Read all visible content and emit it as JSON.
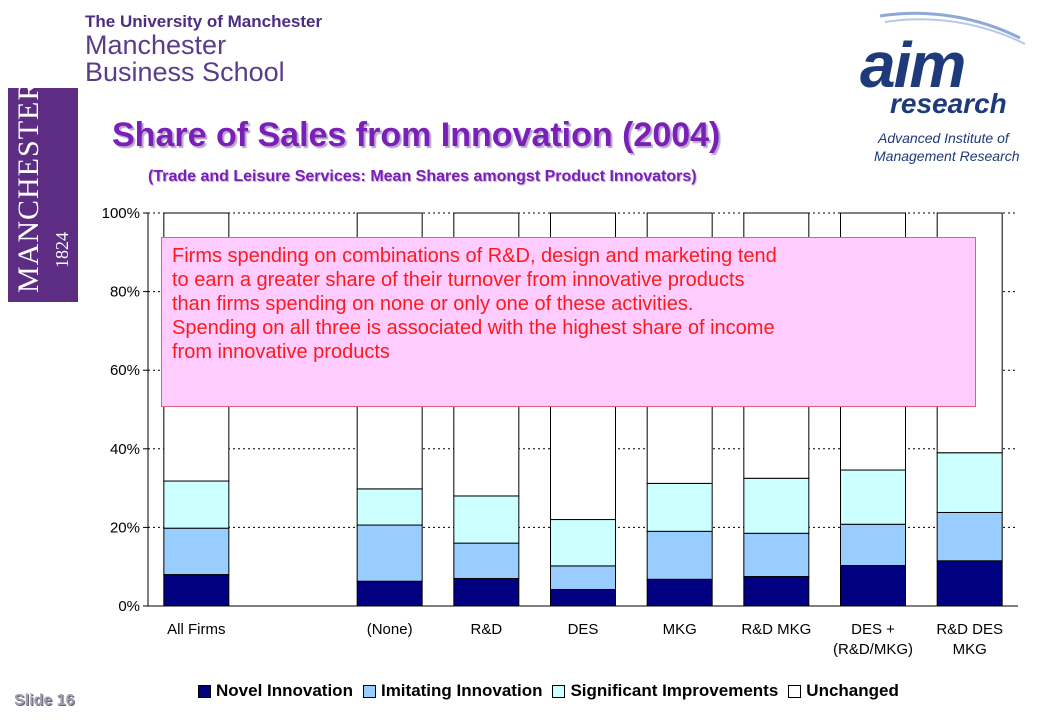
{
  "header": {
    "university": "The University of Manchester",
    "school_line1": "Manchester",
    "school_line2": "Business School"
  },
  "badge": {
    "name": "MANCHESTER",
    "year": "1824"
  },
  "aim_logo": {
    "mark": "aim",
    "research": "research",
    "line1": "Advanced Institute of",
    "line2": "Management Research"
  },
  "slide": {
    "number_label": "Slide 16"
  },
  "callout": {
    "lines": [
      "Firms spending on combinations of R&D, design and marketing tend",
      "to earn a greater share of their turnover from innovative products",
      "than firms spending on none or only one of these activities.",
      "Spending on all three is associated with the highest share of income",
      "from innovative products"
    ]
  },
  "chart_data": {
    "type": "bar",
    "stacked": true,
    "title": "Share of Sales from Innovation (2004)",
    "subtitle": "(Trade and Leisure Services: Mean Shares amongst Product Innovators)",
    "categories": [
      "All Firms",
      "",
      "(None)",
      "R&D",
      "DES",
      "MKG",
      "R&D MKG",
      "DES + (R&D/MKG)",
      "R&D DES MKG"
    ],
    "category_lines": [
      [
        "All Firms"
      ],
      [
        ""
      ],
      [
        "(None)"
      ],
      [
        "R&D"
      ],
      [
        "DES"
      ],
      [
        "MKG"
      ],
      [
        "R&D MKG"
      ],
      [
        "DES +",
        "(R&D/MKG)"
      ],
      [
        "R&D DES",
        "MKG"
      ]
    ],
    "series": [
      {
        "name": "Novel Innovation",
        "color": "#000080",
        "values": [
          8,
          0,
          6.3,
          7,
          4.2,
          6.8,
          7.5,
          10.3,
          11.5
        ]
      },
      {
        "name": "Imitating Innovation",
        "color": "#99ccff",
        "values": [
          11.8,
          0,
          14.3,
          9,
          6,
          12.2,
          11,
          10.5,
          12.3
        ]
      },
      {
        "name": "Significant Improvements",
        "color": "#ccffff",
        "values": [
          12,
          0,
          9.2,
          12,
          11.8,
          12.2,
          14,
          13.8,
          15.2
        ]
      },
      {
        "name": "Unchanged",
        "color": "#ffffff",
        "values": [
          68.2,
          0,
          70.2,
          72,
          78,
          68.8,
          67.5,
          65.4,
          61
        ]
      }
    ],
    "ylim": [
      0,
      100
    ],
    "yticks": [
      0,
      20,
      40,
      60,
      80,
      100
    ],
    "ytick_labels": [
      "0%",
      "20%",
      "40%",
      "60%",
      "80%",
      "100%"
    ],
    "grid": true,
    "legend_position": "bottom"
  }
}
